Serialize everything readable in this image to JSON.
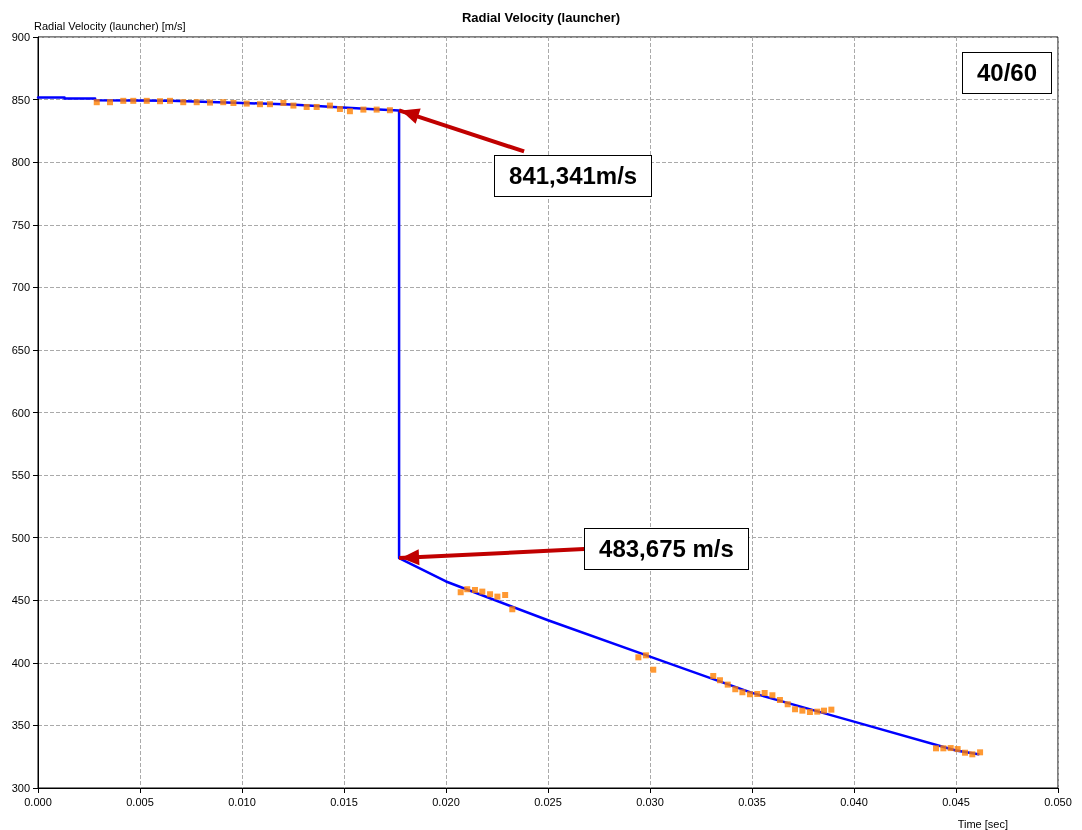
{
  "chart_data": {
    "type": "line",
    "title": "Radial Velocity (launcher)",
    "xlabel": "Time [sec]",
    "ylabel": "Radial Velocity (launcher) [m/s]",
    "xlim": [
      0,
      0.05
    ],
    "ylim": [
      300,
      900
    ],
    "xticks": [
      {
        "value": 0,
        "label": "0.000"
      },
      {
        "value": 0.005,
        "label": "0.005"
      },
      {
        "value": 0.01,
        "label": "0.010"
      },
      {
        "value": 0.015,
        "label": "0.015"
      },
      {
        "value": 0.02,
        "label": "0.020"
      },
      {
        "value": 0.025,
        "label": "0.025"
      },
      {
        "value": 0.03,
        "label": "0.030"
      },
      {
        "value": 0.035,
        "label": "0.035"
      },
      {
        "value": 0.04,
        "label": "0.040"
      },
      {
        "value": 0.045,
        "label": "0.045"
      },
      {
        "value": 0.05,
        "label": "0.050"
      }
    ],
    "yticks": [
      300,
      350,
      400,
      450,
      500,
      550,
      600,
      650,
      700,
      750,
      800,
      850,
      900
    ],
    "grid": true,
    "series": [
      {
        "color": "#0000ff",
        "marker": "none",
        "line_style": "solid",
        "x": [
          0,
          0.0013,
          0.0013,
          0.0028,
          0.0028,
          0.0065,
          0.01,
          0.0124,
          0.0145,
          0.0167,
          0.0177,
          0.0177,
          0.02,
          0.025,
          0.03,
          0.035,
          0.04,
          0.045,
          0.0461
        ],
        "values": [
          851.6,
          851.6,
          850.8,
          850.8,
          849.5,
          849,
          847.3,
          846,
          844.1,
          842,
          841.341,
          483.675,
          465,
          434,
          405,
          376,
          353,
          330,
          327
        ]
      },
      {
        "type": "scatter",
        "color": "#ff7f00",
        "marker": "square",
        "x": [
          0.00288,
          0.00353,
          0.00418,
          0.00467,
          0.00533,
          0.00598,
          0.00647,
          0.00712,
          0.00778,
          0.00843,
          0.00908,
          0.00958,
          0.01023,
          0.01088,
          0.01137,
          0.01203,
          0.01252,
          0.01317,
          0.01366,
          0.01431,
          0.0148,
          0.01529,
          0.01595,
          0.0166,
          0.01725,
          0.02072,
          0.02104,
          0.02142,
          0.02178,
          0.02216,
          0.02252,
          0.0229,
          0.02325,
          0.02943,
          0.0298,
          0.03016,
          0.0331,
          0.03343,
          0.03381,
          0.03418,
          0.03453,
          0.0349,
          0.03526,
          0.03562,
          0.036,
          0.03637,
          0.03675,
          0.03711,
          0.03747,
          0.03784,
          0.0382,
          0.03853,
          0.03889,
          0.04402,
          0.04438,
          0.04474,
          0.04508,
          0.04544,
          0.0458,
          0.04618
        ],
        "values": [
          847.9,
          847.9,
          849,
          849,
          849,
          848.7,
          849,
          847.9,
          847.9,
          847.6,
          847.9,
          847.3,
          846.8,
          846.3,
          846.3,
          847.3,
          845.2,
          844.1,
          844.1,
          845.2,
          842.5,
          840.7,
          842,
          842,
          841.5,
          456.4,
          458.8,
          458.2,
          456.9,
          454.8,
          452.9,
          454.2,
          442.8,
          404.4,
          406,
          394.5,
          389.5,
          386.1,
          382.6,
          378.9,
          376.5,
          374.9,
          375.1,
          375.9,
          374.1,
          370.3,
          366.9,
          362.9,
          361.8,
          360.7,
          361,
          361.8,
          362.6,
          331.7,
          331.7,
          331.9,
          331.1,
          328.2,
          326.9,
          328.5
        ]
      }
    ],
    "annotations": [
      {
        "text": "841,341m/s",
        "x": 0.0177,
        "y": 841.341
      },
      {
        "text": "483,675 m/s",
        "x": 0.0177,
        "y": 483.675
      },
      "40/60"
    ]
  }
}
